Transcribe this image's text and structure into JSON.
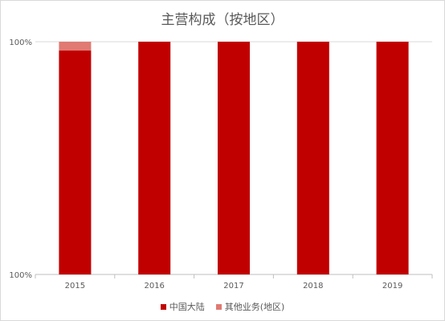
{
  "chart_data": {
    "type": "bar",
    "stacked": true,
    "title": "主营构成（按地区）",
    "xlabel": "",
    "ylabel": "",
    "categories": [
      "2015",
      "2016",
      "2017",
      "2018",
      "2019"
    ],
    "y_tick_labels": [
      "100%",
      "100%"
    ],
    "grid": true,
    "legend_position": "bottom",
    "series": [
      {
        "name": "中国大陆",
        "color": "#c00000",
        "values": [
          96.2,
          100,
          100,
          100,
          100
        ]
      },
      {
        "name": "其他业务(地区)",
        "color": "#e07a73",
        "values": [
          3.8,
          0,
          0,
          0,
          0
        ]
      }
    ],
    "ylim": [
      0,
      100
    ]
  }
}
